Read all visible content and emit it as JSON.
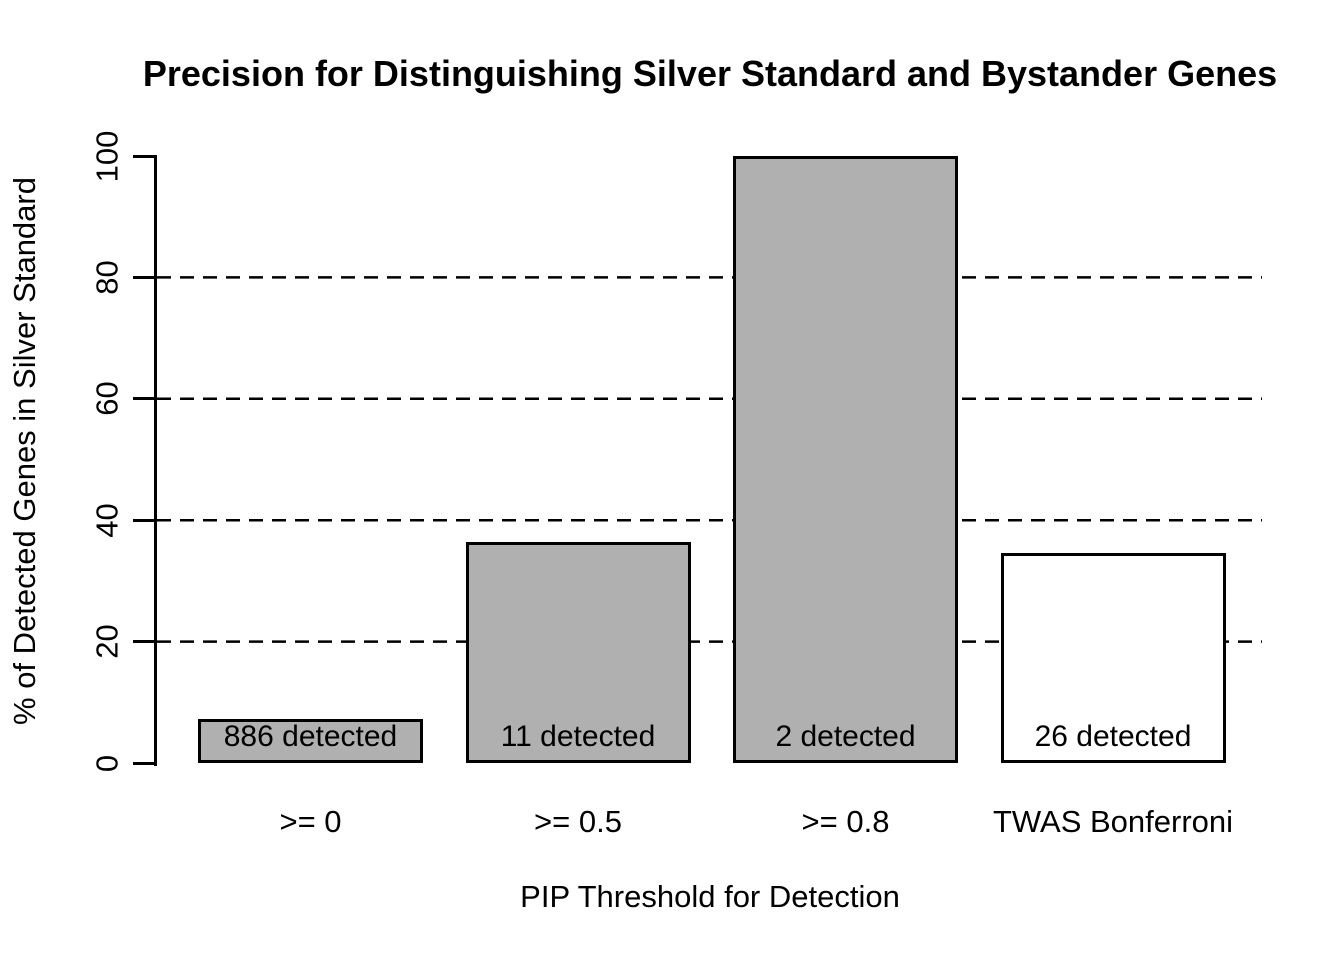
{
  "chart_data": {
    "type": "bar",
    "title": "Precision for Distinguishing Silver Standard and Bystander Genes",
    "xlabel": "PIP Threshold for Detection",
    "ylabel": "% of Detected Genes in Silver Standard",
    "categories": [
      ">= 0",
      ">= 0.5",
      ">= 0.8",
      "TWAS Bonferroni"
    ],
    "values": [
      7.3,
      36.4,
      100,
      34.6
    ],
    "bar_labels": [
      "886 detected",
      "11 detected",
      "2 detected",
      "26 detected"
    ],
    "bar_colors": [
      "#b0b0b0",
      "#b0b0b0",
      "#b0b0b0",
      "#ffffff"
    ],
    "bar_border_color": "#000000",
    "background_color": "#ffffff",
    "text_color": "#000000",
    "ylim": [
      0,
      100
    ],
    "yticks": [
      0,
      20,
      40,
      60,
      80,
      100
    ],
    "gridlines_y": [
      20,
      40,
      60,
      80
    ],
    "grid_style": "dashed",
    "legend": "none"
  }
}
